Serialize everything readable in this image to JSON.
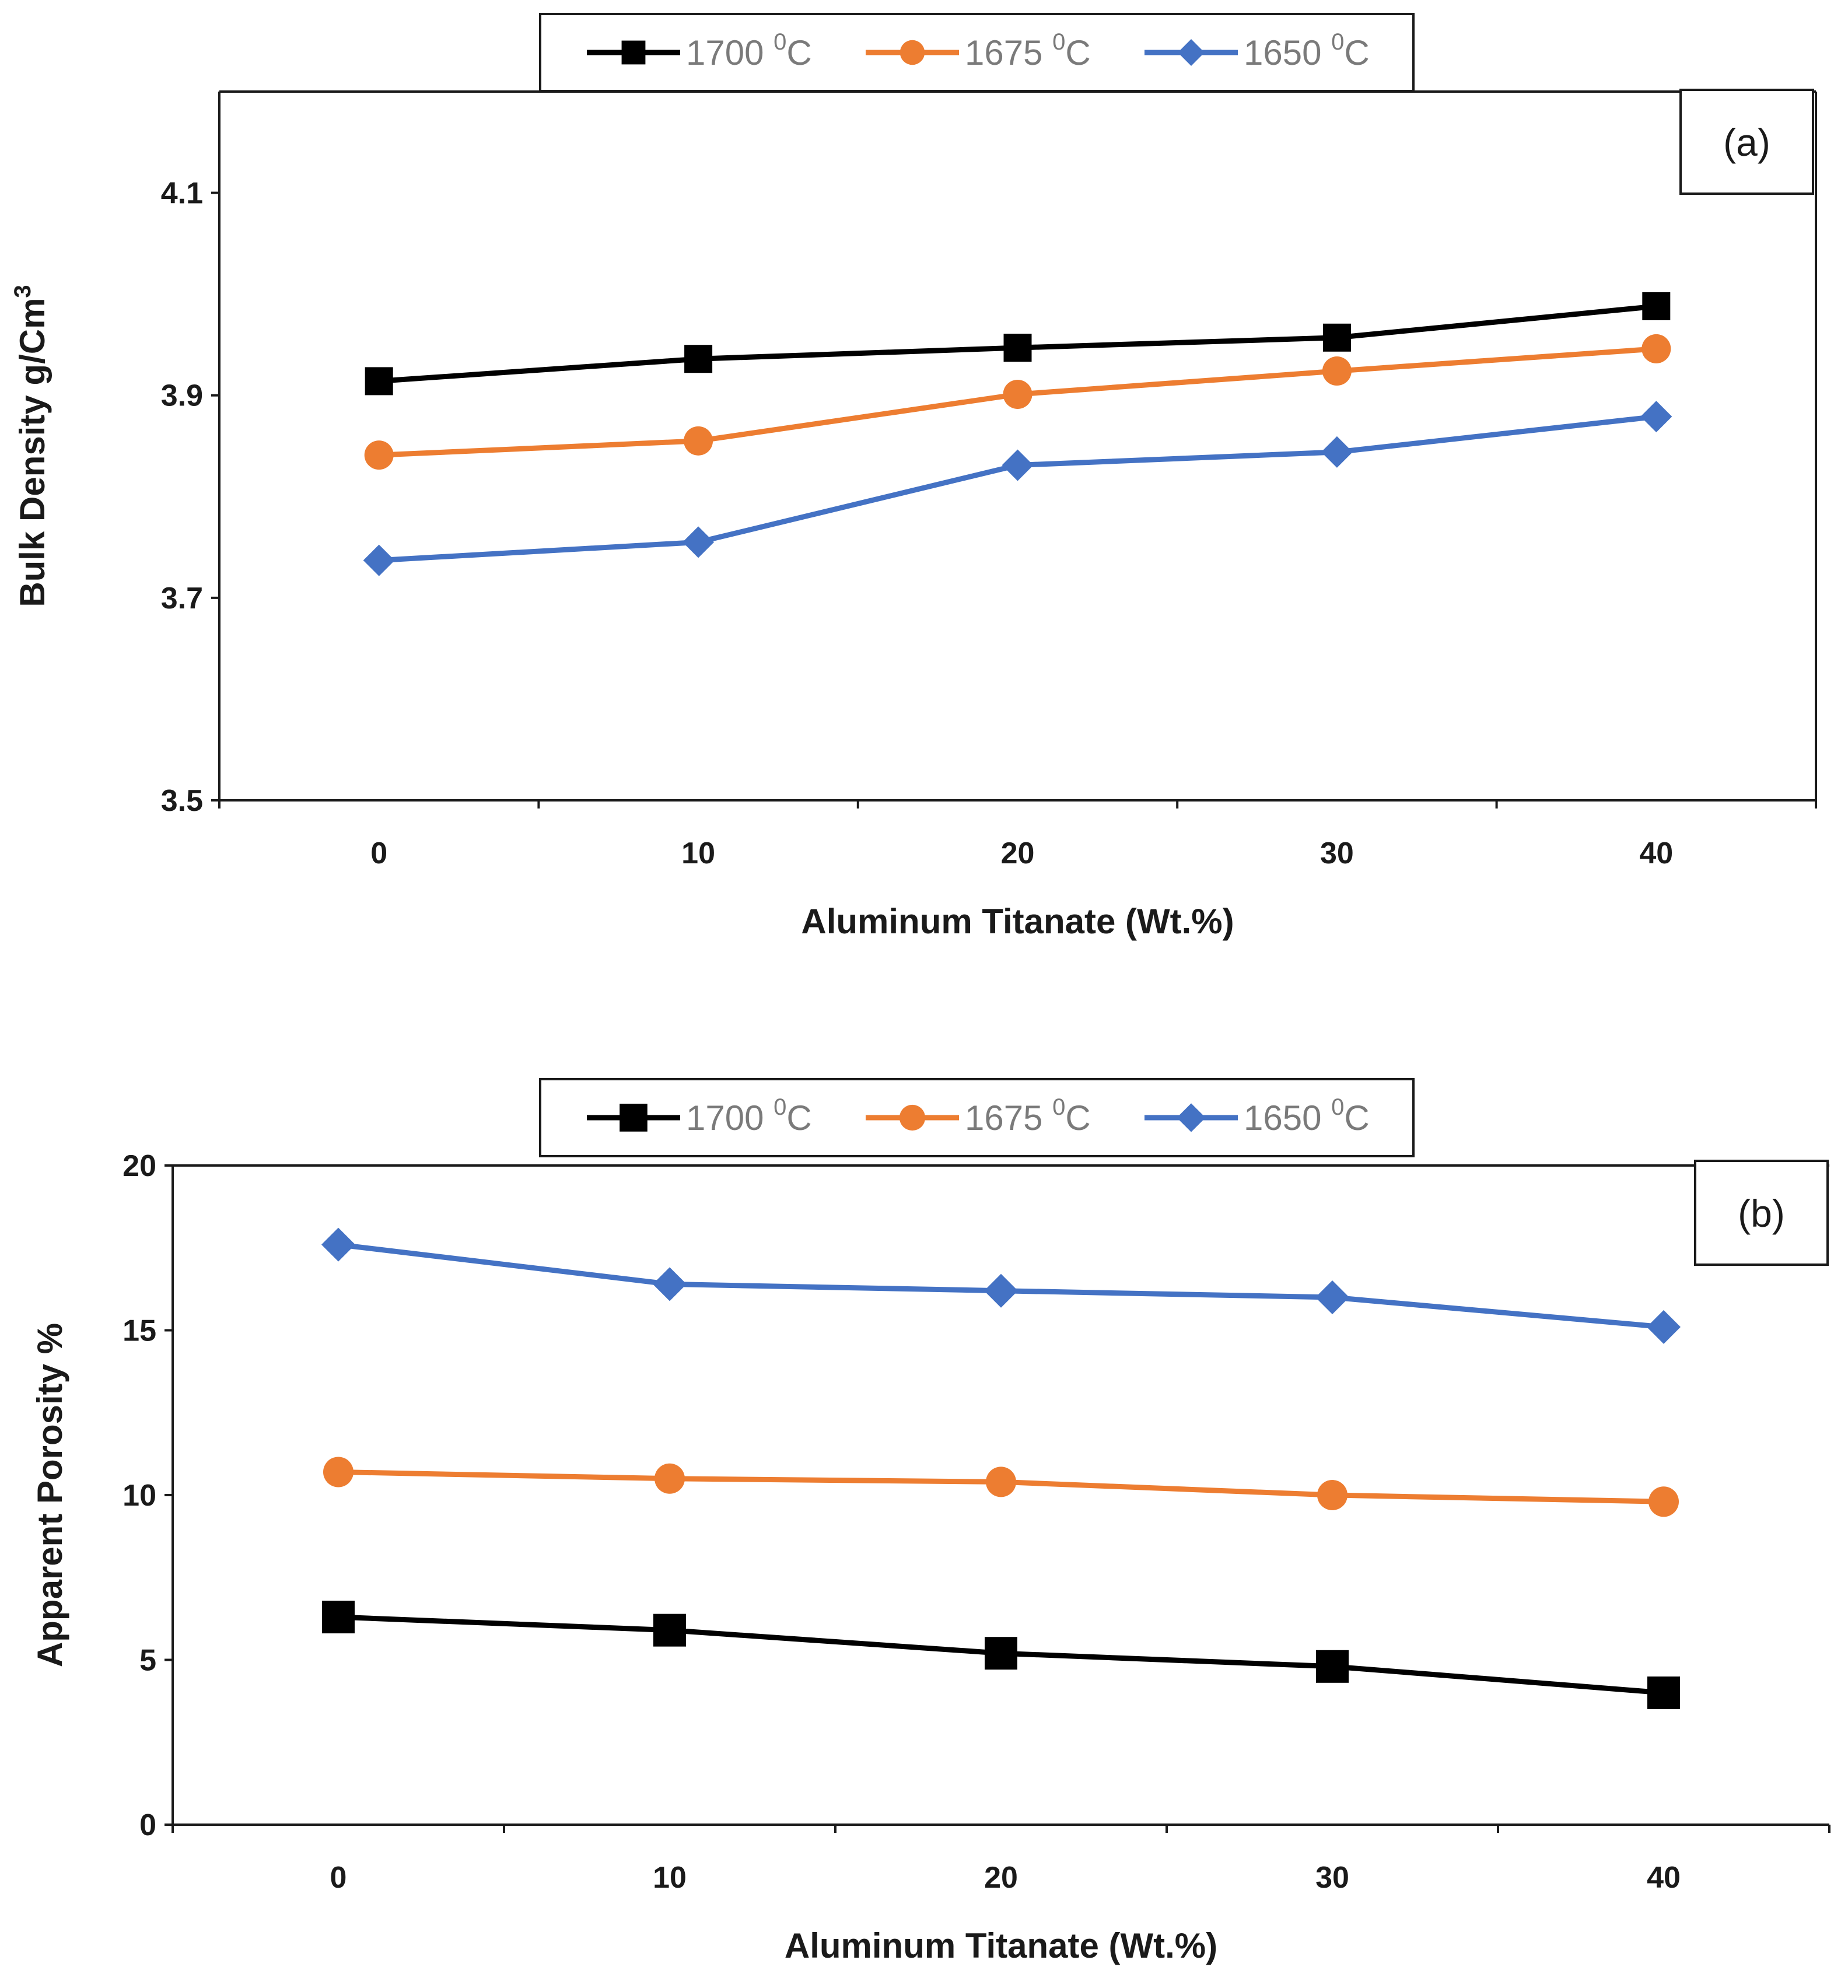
{
  "chart_data": [
    {
      "type": "line",
      "panel_label": "(a)",
      "title": "",
      "xlabel": "Aluminum Titanate (Wt.%)",
      "ylabel": "Bulk Density g/Cm",
      "ylabel_superscript": "3",
      "x": [
        0,
        10,
        20,
        30,
        40
      ],
      "xlim": [
        -5,
        45
      ],
      "ylim": [
        3.5,
        4.2
      ],
      "yticks": [
        3.5,
        3.7,
        3.9,
        4.1
      ],
      "ytick_labels": [
        "3.5",
        "3.7",
        "3.9",
        "4.1"
      ],
      "xtick_labels": [
        "0",
        "10",
        "20",
        "30",
        "40"
      ],
      "legend_position": "top-center",
      "series": [
        {
          "name": "1700",
          "unit": "C",
          "unit_superscript": "0",
          "color": "#000000",
          "marker": "square",
          "values": [
            3.914,
            3.936,
            3.947,
            3.957,
            3.988
          ]
        },
        {
          "name": "1675",
          "unit": "C",
          "unit_superscript": "0",
          "color": "#ED7D31",
          "marker": "circle",
          "values": [
            3.841,
            3.855,
            3.901,
            3.924,
            3.946
          ]
        },
        {
          "name": "1650",
          "unit": "C",
          "unit_superscript": "0",
          "color": "#4472C4",
          "marker": "diamond",
          "values": [
            3.737,
            3.755,
            3.831,
            3.844,
            3.879
          ]
        }
      ]
    },
    {
      "type": "line",
      "panel_label": "(b)",
      "title": "",
      "xlabel": "Aluminum Titanate (Wt.%)",
      "ylabel": "Apparent Porosity %",
      "ylabel_superscript": "",
      "x": [
        0,
        10,
        20,
        30,
        40
      ],
      "xlim": [
        -5,
        45
      ],
      "ylim": [
        0,
        20
      ],
      "yticks": [
        0,
        5,
        10,
        15,
        20
      ],
      "ytick_labels": [
        "0",
        "5",
        "10",
        "15",
        "20"
      ],
      "xtick_labels": [
        "0",
        "10",
        "20",
        "30",
        "40"
      ],
      "legend_position": "top-center",
      "series": [
        {
          "name": "1700",
          "unit": "C",
          "unit_superscript": "0",
          "color": "#000000",
          "marker": "square",
          "values": [
            6.3,
            5.9,
            5.2,
            4.8,
            4.0
          ]
        },
        {
          "name": "1675",
          "unit": "C",
          "unit_superscript": "0",
          "color": "#ED7D31",
          "marker": "circle",
          "values": [
            10.7,
            10.5,
            10.4,
            10.0,
            9.8
          ]
        },
        {
          "name": "1650",
          "unit": "C",
          "unit_superscript": "0",
          "color": "#4472C4",
          "marker": "diamond",
          "values": [
            17.6,
            16.4,
            16.2,
            16.0,
            15.1
          ]
        }
      ]
    }
  ]
}
